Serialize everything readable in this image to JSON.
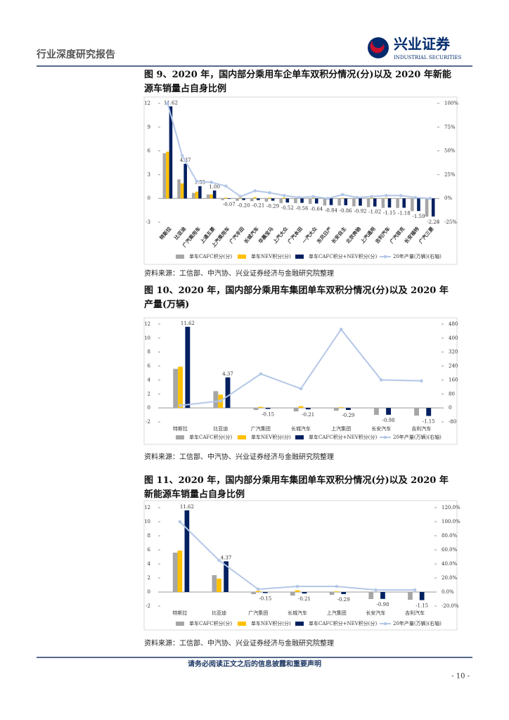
{
  "header": {
    "title": "行业深度研究报告",
    "logo": {
      "name": "兴业证券",
      "english": "INDUSTRIAL SECURITIES"
    }
  },
  "chart_data": [
    {
      "type": "bar",
      "title": "图 9、2020 年，国内部分乘用车企单车双积分情况(分)以及 2020 年新能源车销量占自身比例",
      "source": "资料来源：工信部、中汽协、兴业证券经济与金融研究院整理",
      "categories": [
        "特斯拉",
        "比亚迪",
        "广汽乘用车",
        "上通五菱",
        "上汽乘用车",
        "广汽丰田",
        "长城汽车",
        "华晨宝马",
        "上汽大众",
        "广汽本田",
        "一汽大众",
        "东风日产",
        "长安自主",
        "北京奔驰",
        "上汽通用",
        "吉利汽车",
        "广汽菲克",
        "长安福特",
        "广汽三菱"
      ],
      "ylim": [
        -3,
        12
      ],
      "yticks": [
        -3,
        0,
        3,
        6,
        9,
        12
      ],
      "y2lim": [
        -25,
        100
      ],
      "y2ticks": [
        {
          "value": -25,
          "label": "-25%"
        },
        {
          "value": 0,
          "label": "0%"
        },
        {
          "value": 25,
          "label": "25%"
        },
        {
          "value": 50,
          "label": "50%"
        },
        {
          "value": 75,
          "label": "75%"
        },
        {
          "value": 100,
          "label": "100%"
        }
      ],
      "series": [
        {
          "name": "单车CAFC积分(分)",
          "type": "bar",
          "color": "#a6a6a6",
          "values": [
            5.7,
            2.4,
            0.7,
            0.5,
            -0.2,
            -0.3,
            -0.35,
            -0.4,
            -0.6,
            -0.6,
            -0.7,
            -0.9,
            -0.9,
            -1.0,
            -1.1,
            -1.2,
            -1.2,
            -1.6,
            -2.3
          ]
        },
        {
          "name": "单车NEV积分(分)",
          "type": "bar",
          "color": "#ffc000",
          "values": [
            5.9,
            1.9,
            0.85,
            0.5,
            0.1,
            0.1,
            0.15,
            0.1,
            0.1,
            0.05,
            0.05,
            0.05,
            0.05,
            0.1,
            0.1,
            0.05,
            0,
            0,
            0
          ]
        },
        {
          "name": "单车CAFC积分+NEV积分(分)",
          "type": "bar",
          "color": "#002060",
          "values": [
            11.62,
            4.37,
            1.55,
            1.0,
            -0.07,
            -0.2,
            -0.21,
            -0.29,
            -0.52,
            -0.56,
            -0.64,
            -0.84,
            -0.86,
            -0.92,
            -1.02,
            -1.15,
            -1.18,
            -1.59,
            -2.28
          ],
          "value_labels": [
            "11.62",
            "4.37",
            "1.55",
            "1.00",
            "-0.07",
            "-0.20",
            "-0.21",
            "-0.29",
            "-0.52",
            "-0.56",
            "-0.64",
            "-0.84",
            "-0.86",
            "-0.92",
            "-1.02",
            "-1.15",
            "-1.18",
            "-1.59",
            "-2.28"
          ]
        },
        {
          "name": "20年产量(万辆)(右轴)",
          "type": "line",
          "axis": "y2",
          "color": "#b4c7e7",
          "values": [
            100,
            45,
            18,
            17,
            13,
            2,
            8,
            6,
            3,
            1,
            2,
            0,
            4,
            1,
            2,
            3,
            3,
            1,
            0
          ]
        }
      ]
    },
    {
      "type": "bar",
      "title": "图 10、2020 年，国内部分乘用车集团单车双积分情况(分)以及 2020 年产量(万辆)",
      "source": "资料来源：工信部、中汽协、兴业证券经济与金融研究院整理",
      "categories": [
        "特斯拉",
        "比亚迪",
        "广汽集团",
        "长城汽车",
        "上汽集团",
        "长安汽车",
        "吉利汽车"
      ],
      "ylim": [
        -2,
        12
      ],
      "yticks": [
        -2,
        0,
        2,
        4,
        6,
        8,
        10,
        12
      ],
      "y2lim": [
        -80,
        480
      ],
      "y2ticks": [
        -80,
        0,
        80,
        160,
        240,
        320,
        400,
        480
      ],
      "series": [
        {
          "name": "单车CAFC积分(分)",
          "type": "bar",
          "color": "#a6a6a6",
          "values": [
            5.6,
            2.4,
            -0.3,
            -0.5,
            -0.4,
            -1.0,
            -1.1
          ]
        },
        {
          "name": "单车NEV积分(分)",
          "type": "bar",
          "color": "#ffc000",
          "values": [
            5.9,
            1.9,
            0.15,
            0.25,
            0.1,
            0,
            0
          ]
        },
        {
          "name": "单车CAFC积分+NEV积分(分)",
          "type": "bar",
          "color": "#002060",
          "values": [
            11.62,
            4.37,
            -0.15,
            -0.21,
            -0.29,
            -0.98,
            -1.15
          ],
          "value_labels": [
            "11.62",
            "4.37",
            "-0.15",
            "-0.21",
            "-0.29",
            "-0.98",
            "-1.15"
          ]
        },
        {
          "name": "20年产量(万辆)(右轴)",
          "type": "line",
          "axis": "y2",
          "color": "#b4c7e7",
          "values": [
            14,
            40,
            195,
            110,
            450,
            160,
            155
          ]
        }
      ]
    },
    {
      "type": "bar",
      "title": "图 11、2020 年，国内部分乘用车集团单车双积分情况(分)以及 2020 年新能源车销量占自身比例",
      "source": "资料来源：工信部、中汽协、兴业证券经济与金融研究院整理",
      "categories": [
        "特斯拉",
        "比亚迪",
        "广汽集团",
        "长城汽车",
        "上汽集团",
        "长安汽车",
        "吉利汽车"
      ],
      "ylim": [
        -2,
        12
      ],
      "yticks": [
        -2,
        0,
        2,
        4,
        6,
        8,
        10,
        12
      ],
      "y2lim": [
        -20,
        120
      ],
      "y2ticks": [
        {
          "value": -20,
          "label": "-20.0%"
        },
        {
          "value": 0,
          "label": "0.0%"
        },
        {
          "value": 20,
          "label": "20.0%"
        },
        {
          "value": 40,
          "label": "40.0%"
        },
        {
          "value": 60,
          "label": "60.0%"
        },
        {
          "value": 80,
          "label": "80.0%"
        },
        {
          "value": 100,
          "label": "100.0%"
        },
        {
          "value": 120,
          "label": "120.0%"
        }
      ],
      "series": [
        {
          "name": "单车CAFC积分(分)",
          "type": "bar",
          "color": "#a6a6a6",
          "values": [
            5.6,
            2.4,
            -0.3,
            -0.5,
            -0.4,
            -1.0,
            -1.1
          ]
        },
        {
          "name": "单车NEV积分(分)",
          "type": "bar",
          "color": "#ffc000",
          "values": [
            5.9,
            1.9,
            0.15,
            0.25,
            0.1,
            0,
            0
          ]
        },
        {
          "name": "单车CAFC积分+NEV积分(分)",
          "type": "bar",
          "color": "#002060",
          "values": [
            11.62,
            4.37,
            -0.15,
            -0.21,
            -0.29,
            -0.98,
            -1.15
          ],
          "value_labels": [
            "11.62",
            "4.37",
            "-0.15",
            "-0.21",
            "-0.29",
            "-0.98",
            "-1.15"
          ]
        },
        {
          "name": "20年产量(万辆)(右轴)",
          "type": "line",
          "axis": "y2",
          "color": "#b4c7e7",
          "values": [
            100,
            45,
            4,
            8,
            8,
            3,
            3
          ]
        }
      ]
    }
  ],
  "footer": {
    "notice": "请务必阅读正文之后的信息披露和重要声明",
    "page": "- 10 -"
  }
}
